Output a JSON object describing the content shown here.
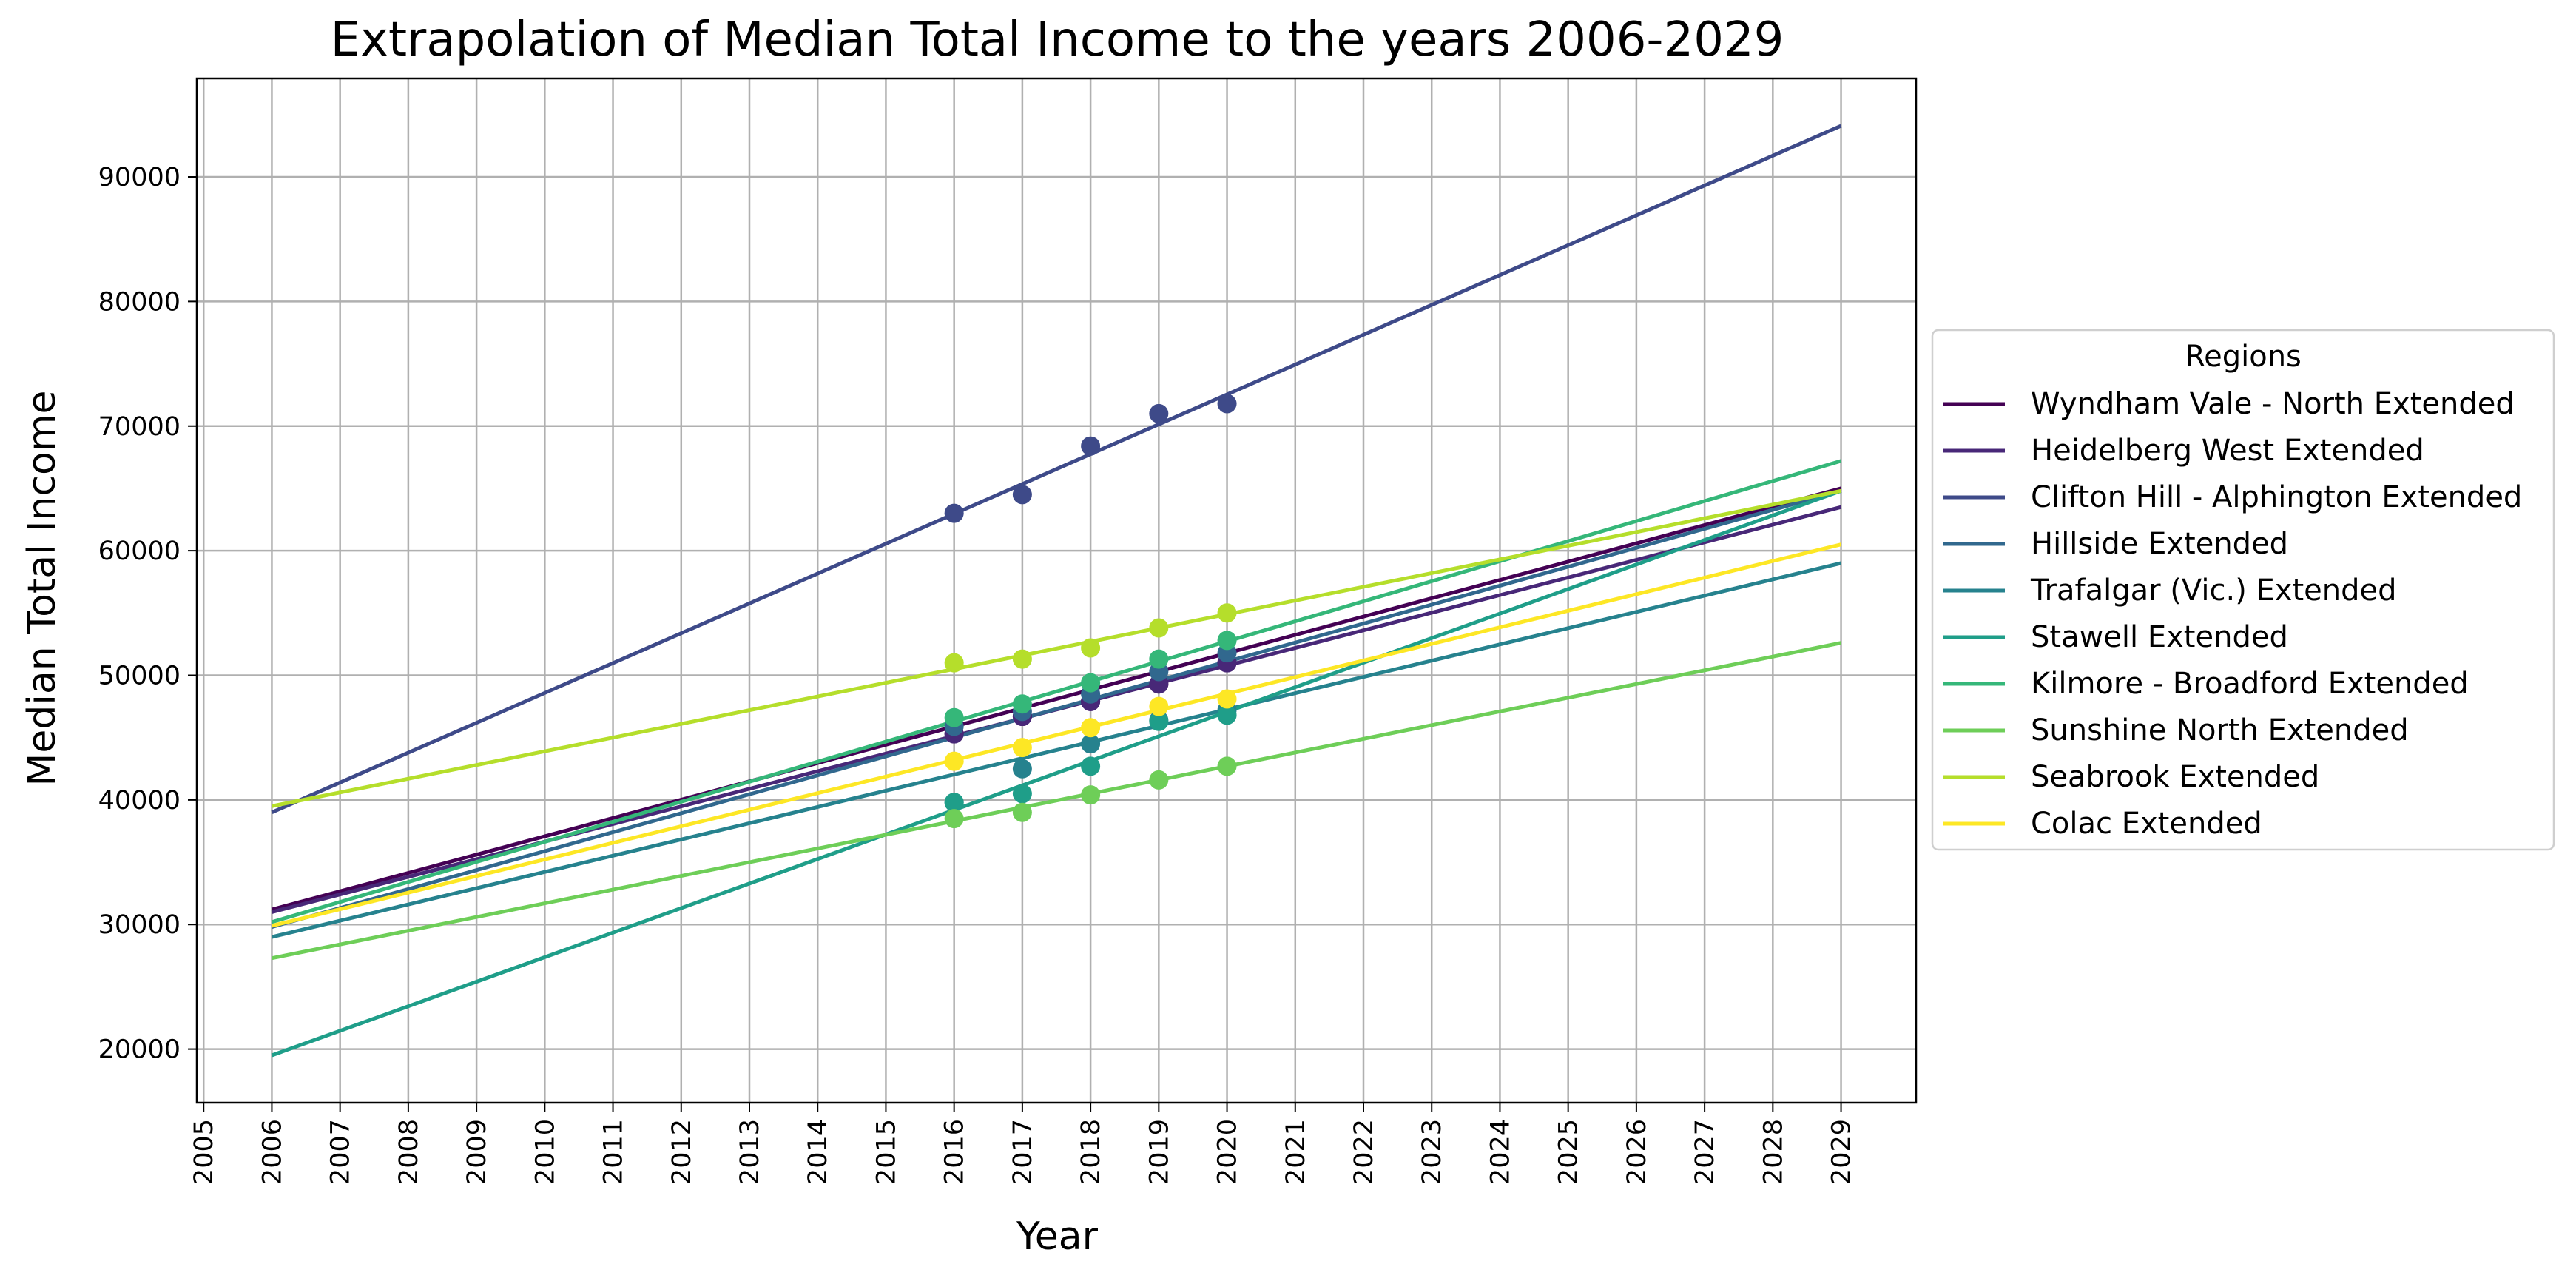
{
  "chart_data": {
    "type": "line",
    "title": "Extrapolation of Median Total Income to the years 2006-2029",
    "xlabel": "Year",
    "ylabel": "Median Total Income",
    "xlim": [
      2004.9,
      2030.1
    ],
    "ylim": [
      15700,
      97900
    ],
    "x_ticks": [
      2005,
      2006,
      2007,
      2008,
      2009,
      2010,
      2011,
      2012,
      2013,
      2014,
      2015,
      2016,
      2017,
      2018,
      2019,
      2020,
      2021,
      2022,
      2023,
      2024,
      2025,
      2026,
      2027,
      2028,
      2029
    ],
    "y_ticks": [
      20000,
      30000,
      40000,
      50000,
      60000,
      70000,
      80000,
      90000
    ],
    "grid": true,
    "legend": {
      "title": "Regions",
      "position": "outside-right"
    },
    "series": [
      {
        "name": "Wyndham Vale - North Extended",
        "color": "#440154",
        "line": [
          [
            2006,
            31200
          ],
          [
            2029,
            65000
          ]
        ],
        "points": [
          [
            2016,
            45300
          ],
          [
            2017,
            46700
          ],
          [
            2018,
            47900
          ],
          [
            2019,
            49300
          ],
          [
            2020,
            51000
          ]
        ]
      },
      {
        "name": "Heidelberg West Extended",
        "color": "#482878",
        "line": [
          [
            2006,
            31000
          ],
          [
            2029,
            63500
          ]
        ],
        "points": [
          [
            2016,
            45300
          ],
          [
            2017,
            46700
          ],
          [
            2018,
            47900
          ],
          [
            2019,
            49300
          ],
          [
            2020,
            51000
          ]
        ]
      },
      {
        "name": "Clifton Hill - Alphington Extended",
        "color": "#3e4a89",
        "line": [
          [
            2006,
            39000
          ],
          [
            2029,
            94100
          ]
        ],
        "points": [
          [
            2016,
            63000
          ],
          [
            2017,
            64500
          ],
          [
            2018,
            68400
          ],
          [
            2019,
            71000
          ],
          [
            2020,
            71800
          ]
        ]
      },
      {
        "name": "Hillside Extended",
        "color": "#31688e",
        "line": [
          [
            2006,
            29800
          ],
          [
            2029,
            64800
          ]
        ],
        "points": [
          [
            2016,
            45900
          ],
          [
            2017,
            47100
          ],
          [
            2018,
            48500
          ],
          [
            2019,
            50300
          ],
          [
            2020,
            51800
          ]
        ]
      },
      {
        "name": "Trafalgar (Vic.) Extended",
        "color": "#26828e",
        "line": [
          [
            2006,
            29000
          ],
          [
            2029,
            59000
          ]
        ],
        "points": [
          [
            2016,
            39800
          ],
          [
            2017,
            42500
          ],
          [
            2018,
            44500
          ],
          [
            2019,
            46400
          ],
          [
            2020,
            47200
          ]
        ]
      },
      {
        "name": "Stawell Extended",
        "color": "#1f9e89",
        "line": [
          [
            2006,
            19500
          ],
          [
            2029,
            64800
          ]
        ],
        "points": [
          [
            2016,
            39800
          ],
          [
            2017,
            40500
          ],
          [
            2018,
            42700
          ],
          [
            2019,
            46300
          ],
          [
            2020,
            46800
          ]
        ]
      },
      {
        "name": "Kilmore - Broadford Extended",
        "color": "#35b779",
        "line": [
          [
            2006,
            30200
          ],
          [
            2029,
            67200
          ]
        ],
        "points": [
          [
            2016,
            46600
          ],
          [
            2017,
            47700
          ],
          [
            2018,
            49400
          ],
          [
            2019,
            51300
          ],
          [
            2020,
            52800
          ]
        ]
      },
      {
        "name": "Sunshine North Extended",
        "color": "#6ece58",
        "line": [
          [
            2006,
            27300
          ],
          [
            2029,
            52600
          ]
        ],
        "points": [
          [
            2016,
            38500
          ],
          [
            2017,
            39000
          ],
          [
            2018,
            40400
          ],
          [
            2019,
            41600
          ],
          [
            2020,
            42700
          ]
        ]
      },
      {
        "name": "Seabrook Extended",
        "color": "#b5de2b",
        "line": [
          [
            2006,
            39500
          ],
          [
            2029,
            64800
          ]
        ],
        "points": [
          [
            2016,
            51000
          ],
          [
            2017,
            51300
          ],
          [
            2018,
            52200
          ],
          [
            2019,
            53800
          ],
          [
            2020,
            55000
          ]
        ]
      },
      {
        "name": "Colac Extended",
        "color": "#fde725",
        "line": [
          [
            2006,
            29900
          ],
          [
            2029,
            60500
          ]
        ],
        "points": [
          [
            2016,
            43100
          ],
          [
            2017,
            44200
          ],
          [
            2018,
            45800
          ],
          [
            2019,
            47500
          ],
          [
            2020,
            48100
          ]
        ]
      }
    ]
  }
}
